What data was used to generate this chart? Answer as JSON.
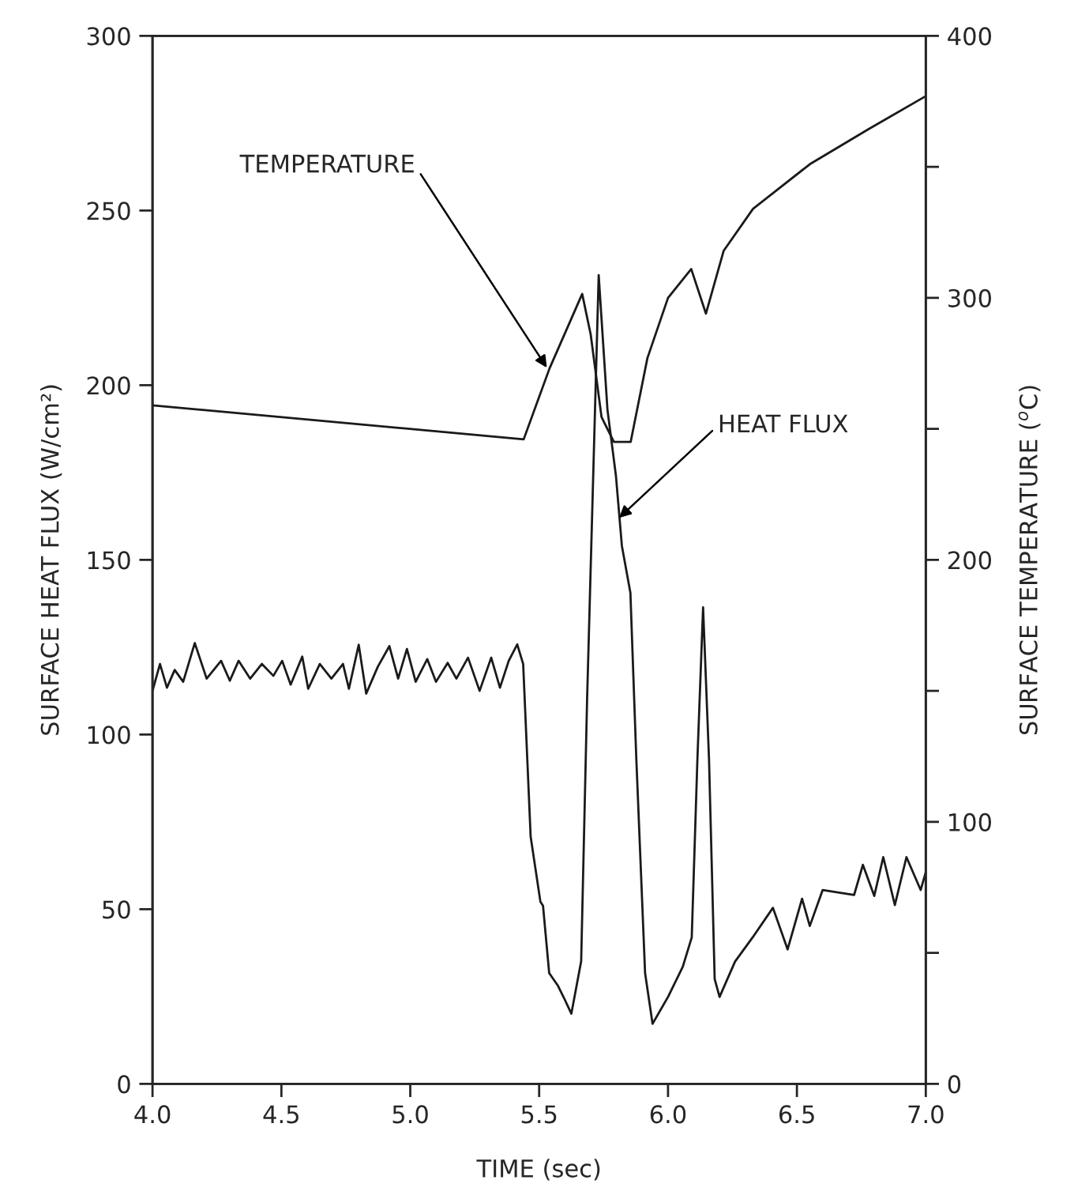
{
  "chart_data": {
    "type": "line",
    "xlabel": "TIME (sec)",
    "ylabel": "SURFACE HEAT FLUX (W/cm²)",
    "y2label": "SURFACE TEMPERATURE ($^{o}$C)",
    "xlim": [
      4.0,
      7.0
    ],
    "xticks": [
      {
        "value": 4.0,
        "label": "4.0"
      },
      {
        "value": 4.5,
        "label": "4.5"
      },
      {
        "value": 5.0,
        "label": "5.0"
      },
      {
        "value": 5.5,
        "label": "5.5"
      },
      {
        "value": 6.0,
        "label": "6.0"
      },
      {
        "value": 6.5,
        "label": "6.5"
      },
      {
        "value": 7.0,
        "label": "7.0"
      }
    ],
    "ylim": [
      0,
      300
    ],
    "yticks": [
      0,
      50,
      100,
      150,
      200,
      250,
      300
    ],
    "y2lim": [
      0,
      400
    ],
    "y2ticks": [
      0,
      {
        "value": 50,
        "label": null
      },
      100,
      {
        "value": 150,
        "label": null
      },
      200,
      {
        "value": 250,
        "label": null
      },
      300,
      {
        "value": 350,
        "label": null
      },
      400
    ],
    "grid": false,
    "legend": false,
    "marker": "none",
    "line_style": "solid",
    "series": [
      {
        "color": "#1a1a1a",
        "axis": "y",
        "x": [
          4.0,
          4.029,
          4.056,
          4.086,
          4.119,
          4.164,
          4.21,
          4.266,
          4.3,
          4.334,
          4.379,
          4.424,
          4.469,
          4.503,
          4.536,
          4.581,
          4.604,
          4.649,
          4.694,
          4.739,
          4.762,
          4.8,
          4.829,
          4.874,
          4.919,
          4.953,
          4.987,
          5.021,
          5.066,
          5.1,
          5.145,
          5.179,
          5.224,
          5.269,
          5.314,
          5.348,
          5.382,
          5.415,
          5.438,
          5.467,
          5.505,
          5.515,
          5.539,
          5.572,
          5.595,
          5.625,
          5.663,
          5.686,
          5.731,
          5.765,
          5.798,
          5.821,
          5.854,
          5.877,
          5.911,
          5.94,
          6.0,
          6.057,
          6.092,
          6.114,
          6.136,
          6.159,
          6.181,
          6.2,
          6.26,
          6.328,
          6.407,
          6.464,
          6.52,
          6.55,
          6.6,
          6.722,
          6.756,
          6.8,
          6.835,
          6.88,
          6.925,
          6.98,
          7.0
        ],
        "values": [
          112.5,
          120.2,
          113.4,
          118.5,
          115.1,
          126.2,
          116.0,
          121.1,
          115.4,
          121.1,
          116.0,
          120.2,
          116.8,
          121.1,
          114.3,
          122.3,
          113.1,
          120.2,
          116.0,
          120.2,
          113.1,
          125.7,
          111.7,
          119.4,
          125.3,
          116.0,
          124.5,
          115.1,
          121.6,
          115.1,
          120.5,
          116.0,
          122.0,
          112.5,
          122.0,
          113.4,
          121.1,
          125.8,
          120.2,
          70.8,
          52.1,
          51.0,
          31.7,
          28.2,
          24.8,
          20.1,
          35.1,
          110.0,
          231.5,
          193.0,
          174.0,
          154.0,
          140.6,
          93.0,
          31.7,
          17.2,
          24.9,
          33.5,
          41.9,
          93.0,
          136.4,
          93.0,
          30.0,
          24.9,
          35.0,
          41.9,
          50.4,
          38.5,
          53.0,
          45.2,
          55.5,
          54.1,
          62.7,
          53.8,
          64.9,
          51.2,
          64.9,
          55.5,
          60.6
        ]
      },
      {
        "color": "#1a1a1a",
        "axis": "y2",
        "x": [
          4.0,
          5.44,
          5.54,
          5.667,
          5.7,
          5.742,
          5.79,
          5.855,
          5.92,
          6.0,
          6.09,
          6.147,
          6.216,
          6.33,
          6.55,
          6.78,
          7.0
        ],
        "values": [
          259,
          246,
          273,
          301.5,
          286,
          254.5,
          245,
          245,
          277,
          300,
          311,
          294,
          318,
          334,
          351,
          364.5,
          377
        ]
      }
    ],
    "annotations": [
      {
        "text": "TEMPERATURE",
        "x": 5.53,
        "y": 205
      },
      {
        "text": "HEAT FLUX",
        "x": 5.81,
        "y": 162
      }
    ]
  }
}
